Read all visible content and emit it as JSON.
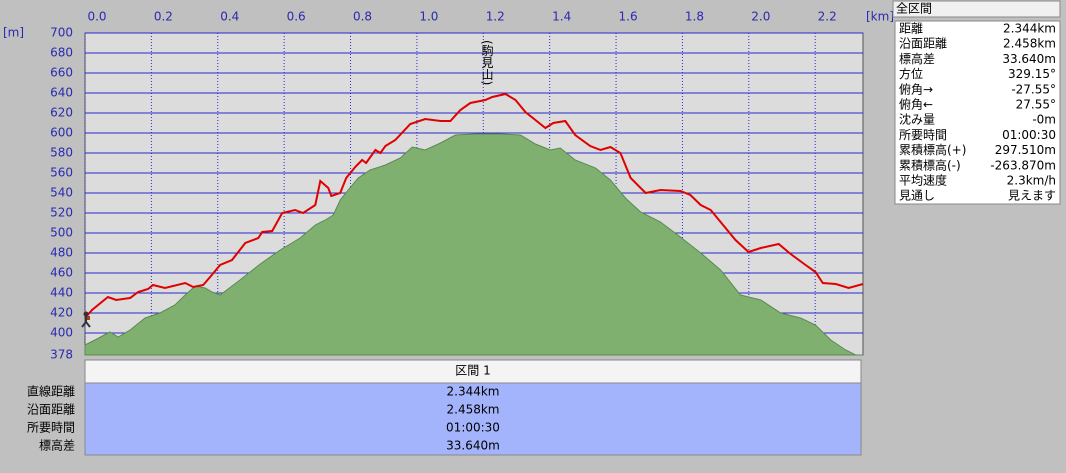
{
  "chart_data": {
    "type": "line",
    "x_unit": "[km]",
    "y_unit": "[m]",
    "xlim": [
      0,
      2.344
    ],
    "ylim": [
      378,
      700
    ],
    "xticks": [
      {
        "value": 0,
        "label": "0.0"
      },
      0.2,
      0.4,
      0.6,
      0.8,
      {
        "value": 1,
        "label": "1.0"
      },
      1.2,
      1.4,
      1.6,
      1.8,
      {
        "value": 2,
        "label": "2.0"
      },
      2.2
    ],
    "yticks": [
      378,
      400,
      420,
      440,
      460,
      480,
      500,
      520,
      540,
      560,
      580,
      600,
      620,
      640,
      660,
      680,
      700
    ],
    "grid": true,
    "annotation": "(駒見山)",
    "series": [
      {
        "color": "#80b070",
        "fill": true,
        "x": [
          0,
          0.03,
          0.075,
          0.1,
          0.136,
          0.181,
          0.226,
          0.271,
          0.302,
          0.332,
          0.362,
          0.383,
          0.407,
          0.467,
          0.528,
          0.588,
          0.648,
          0.694,
          0.724,
          0.748,
          0.769,
          0.793,
          0.823,
          0.859,
          0.905,
          0.95,
          0.986,
          1.025,
          1.071,
          1.116,
          1.176,
          1.251,
          1.312,
          1.357,
          1.402,
          1.432,
          1.477,
          1.538,
          1.583,
          1.628,
          1.674,
          1.734,
          1.794,
          1.855,
          1.915,
          1.975,
          2.036,
          2.096,
          2.156,
          2.201,
          2.247,
          2.292,
          2.322,
          2.344
        ],
        "values": [
          388,
          393,
          401,
          396,
          403,
          415,
          420,
          428,
          438,
          447,
          445,
          441,
          438,
          453,
          469,
          483,
          495,
          508,
          513,
          518,
          533,
          543,
          555,
          563,
          568,
          575,
          586,
          583,
          590,
          598,
          599,
          599,
          598,
          589,
          583,
          585,
          573,
          565,
          553,
          535,
          521,
          511,
          496,
          480,
          463,
          438,
          433,
          420,
          415,
          408,
          393,
          383,
          378,
          378
        ]
      },
      {
        "color": "#e00000",
        "fill": false,
        "x": [
          0,
          0.021,
          0.069,
          0.094,
          0.136,
          0.16,
          0.19,
          0.205,
          0.241,
          0.302,
          0.326,
          0.356,
          0.377,
          0.407,
          0.443,
          0.483,
          0.522,
          0.534,
          0.564,
          0.594,
          0.633,
          0.657,
          0.694,
          0.709,
          0.733,
          0.742,
          0.769,
          0.787,
          0.814,
          0.835,
          0.847,
          0.875,
          0.89,
          0.905,
          0.935,
          0.98,
          1.025,
          1.071,
          1.101,
          1.131,
          1.161,
          1.206,
          1.227,
          1.267,
          1.297,
          1.327,
          1.357,
          1.387,
          1.411,
          1.447,
          1.477,
          1.522,
          1.553,
          1.583,
          1.613,
          1.644,
          1.689,
          1.734,
          1.794,
          1.824,
          1.855,
          1.885,
          1.915,
          1.96,
          1.999,
          2.036,
          2.09,
          2.126,
          2.171,
          2.201,
          2.223,
          2.262,
          2.301,
          2.344
        ],
        "values": [
          415,
          423,
          436,
          433,
          435,
          441,
          444,
          448,
          445,
          450,
          446,
          448,
          456,
          468,
          473,
          490,
          495,
          501,
          502,
          520,
          523,
          520,
          528,
          552,
          545,
          537,
          540,
          555,
          566,
          573,
          570,
          583,
          580,
          587,
          593,
          609,
          614,
          612,
          612,
          623,
          630,
          633,
          636,
          639,
          633,
          621,
          613,
          605,
          610,
          612,
          598,
          587,
          583,
          586,
          580,
          555,
          540,
          543,
          542,
          538,
          528,
          523,
          511,
          493,
          481,
          485,
          489,
          479,
          468,
          461,
          450,
          449,
          445,
          449
        ]
      }
    ]
  },
  "summary": {
    "title": "全区間",
    "rows": [
      [
        "距離",
        "2.344km"
      ],
      [
        "沿面距離",
        "2.458km"
      ],
      [
        "標高差",
        "33.640m"
      ],
      [
        "方位",
        "329.15°"
      ],
      [
        "俯角→",
        "-27.55°"
      ],
      [
        "俯角←",
        "27.55°"
      ],
      [
        "沈み量",
        "-0m"
      ],
      [
        "所要時間",
        "01:00:30"
      ],
      [
        "累積標高(+)",
        "297.510m"
      ],
      [
        "累積標高(-)",
        "-263.870m"
      ],
      [
        "平均速度",
        "2.3km/h"
      ],
      [
        "見通し",
        "見えます"
      ]
    ]
  },
  "section_table": {
    "header": "区間 1",
    "rows": [
      [
        "直線距離",
        "2.344km"
      ],
      [
        "沿面距離",
        "2.458km"
      ],
      [
        "所要時間",
        "01:00:30"
      ],
      [
        "標高差",
        "33.640m"
      ]
    ]
  }
}
